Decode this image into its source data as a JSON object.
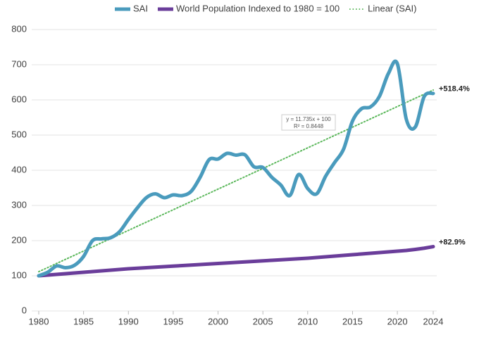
{
  "chart_data": {
    "type": "line",
    "x": [
      1980,
      1981,
      1982,
      1983,
      1984,
      1985,
      1986,
      1987,
      1988,
      1989,
      1990,
      1991,
      1992,
      1993,
      1994,
      1995,
      1996,
      1997,
      1998,
      1999,
      2000,
      2001,
      2002,
      2003,
      2004,
      2005,
      2006,
      2007,
      2008,
      2009,
      2010,
      2011,
      2012,
      2013,
      2014,
      2015,
      2016,
      2017,
      2018,
      2019,
      2020,
      2021,
      2022,
      2023,
      2024
    ],
    "series": [
      {
        "name": "SAI",
        "color": "#4a9bbd",
        "smooth": true,
        "values": [
          100,
          110,
          128,
          123,
          130,
          155,
          200,
          205,
          208,
          225,
          260,
          293,
          322,
          333,
          322,
          330,
          328,
          340,
          380,
          430,
          432,
          448,
          443,
          444,
          410,
          408,
          380,
          358,
          328,
          388,
          348,
          333,
          383,
          422,
          460,
          540,
          575,
          580,
          610,
          675,
          703,
          545,
          523,
          610,
          618.4
        ]
      },
      {
        "name": "World Population Indexed to 1980 = 100",
        "color": "#6a3d9a",
        "smooth": false,
        "values": [
          100,
          102,
          104,
          106,
          108,
          110,
          112,
          114,
          116,
          118,
          120,
          121.5,
          123,
          124.5,
          126,
          127.5,
          129,
          130.5,
          132,
          133.5,
          135,
          136.5,
          138,
          139.5,
          141,
          142.5,
          144,
          145.5,
          147,
          148.5,
          150,
          152,
          154,
          156,
          158,
          160,
          162,
          164,
          166,
          168,
          170,
          172,
          175,
          178.5,
          182.9
        ]
      },
      {
        "name": "Linear (SAI)",
        "color": "#5cb85c",
        "dotted": true,
        "x": [
          1980,
          2024
        ],
        "values": [
          111.7,
          628.1
        ]
      }
    ],
    "annotations": [
      {
        "text": "+518.4%",
        "x": 2024,
        "y": 618.4
      },
      {
        "text": "+82.9%",
        "x": 2024,
        "y": 182.9
      }
    ],
    "equation": [
      "y = 11.735x + 100",
      "R² = 0.8448"
    ],
    "xlim": [
      1980,
      2024
    ],
    "xticks": [
      1980,
      1985,
      1990,
      1995,
      2000,
      2005,
      2010,
      2015,
      2020,
      2024
    ],
    "ylim": [
      0,
      800
    ],
    "yticks": [
      0,
      100,
      200,
      300,
      400,
      500,
      600,
      700,
      800
    ],
    "grid": true,
    "legend": "top"
  }
}
